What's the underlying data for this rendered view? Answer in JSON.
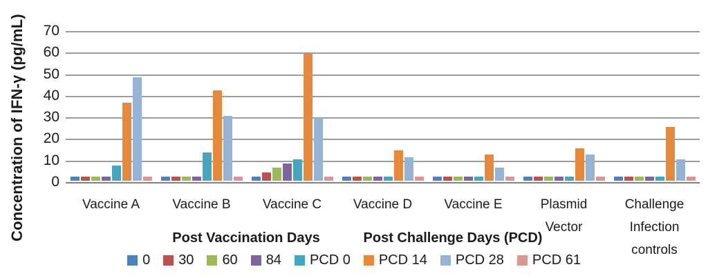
{
  "chart_data": {
    "type": "bar",
    "title": "",
    "ylabel": "Concentration of IFN-γ (pg/mL)",
    "xlabel_left": "Post Vaccination Days",
    "xlabel_right": "Post Challenge Days (PCD)",
    "ylim": [
      0,
      70
    ],
    "yticks": [
      0,
      10,
      20,
      30,
      40,
      50,
      60,
      70
    ],
    "grid": true,
    "legend_position": "bottom",
    "categories": [
      "Vaccine A",
      "Vaccine B",
      "Vaccine C",
      "Vaccine D",
      "Vaccine E",
      "Plasmid Vector",
      "Challenge Infection controls"
    ],
    "series": [
      {
        "name": "0",
        "color": "#4F81BD",
        "values": [
          2,
          2,
          2,
          2,
          2,
          2,
          2
        ]
      },
      {
        "name": "30",
        "color": "#C0504D",
        "values": [
          2,
          2,
          4,
          2,
          2,
          2,
          2
        ]
      },
      {
        "name": "60",
        "color": "#9BBB59",
        "values": [
          2,
          2,
          6,
          2,
          2,
          2,
          2
        ]
      },
      {
        "name": "84",
        "color": "#8064A2",
        "values": [
          2,
          2,
          8,
          2,
          2,
          2,
          2
        ]
      },
      {
        "name": "PCD 0",
        "color": "#45A6C1",
        "values": [
          7,
          13,
          10,
          2,
          2,
          2,
          2
        ]
      },
      {
        "name": "PCD 14",
        "color": "#E8883B",
        "values": [
          36,
          42,
          59,
          14,
          12,
          15,
          25
        ]
      },
      {
        "name": "PCD 28",
        "color": "#95B3D7",
        "values": [
          48,
          30,
          29,
          11,
          6,
          12,
          10
        ]
      },
      {
        "name": "PCD 61",
        "color": "#D99694",
        "values": [
          2,
          2,
          2,
          2,
          2,
          2,
          2
        ]
      }
    ],
    "colors": {
      "gridline": "#9c9c9c",
      "axis_line": "#7f7f7f",
      "background": "#ffffff"
    }
  }
}
